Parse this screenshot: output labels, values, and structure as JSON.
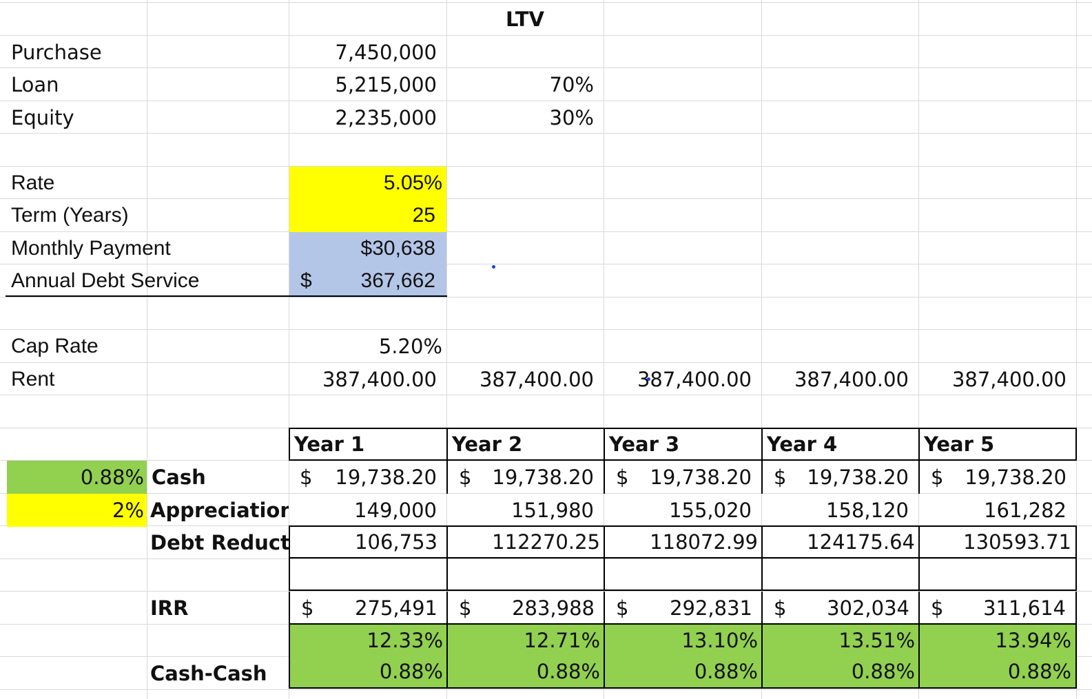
{
  "header": {
    "ltv": "LTV"
  },
  "financing": {
    "purchase": {
      "label": "Purchase",
      "value": "7,450,000"
    },
    "loan": {
      "label": "Loan",
      "value": "5,215,000",
      "pct": "70%"
    },
    "equity": {
      "label": "Equity",
      "value": "2,235,000",
      "pct": "30%"
    },
    "rate": {
      "label": "Rate",
      "value": "5.05%"
    },
    "term": {
      "label": "Term (Years)",
      "value": "25"
    },
    "monthly_payment": {
      "label": "Monthly Payment",
      "value": "$30,638"
    },
    "annual_debt_service": {
      "label": "Annual Debt Service",
      "currency": "$",
      "value": "367,662"
    }
  },
  "income": {
    "cap_rate": {
      "label": "Cap Rate",
      "value": "5.20%"
    },
    "rent": {
      "label": "Rent",
      "values": [
        "387,400.00",
        "387,400.00",
        "387,400.00",
        "387,400.00",
        "387,400.00"
      ]
    }
  },
  "returns": {
    "years": [
      "Year 1",
      "Year 2",
      "Year 3",
      "Year 4",
      "Year 5"
    ],
    "cash": {
      "rate": "0.88%",
      "label": "Cash",
      "currency": "$",
      "values": [
        "19,738.20",
        "19,738.20",
        "19,738.20",
        "19,738.20",
        "19,738.20"
      ]
    },
    "appreciation": {
      "rate": "2%",
      "label": "Appreciation",
      "values": [
        "149,000",
        "151,980",
        "155,020",
        "158,120",
        "161,282"
      ]
    },
    "debt_reduction": {
      "label": "Debt Reducti",
      "values": [
        "106,753",
        "112270.25",
        "118072.99",
        "124175.64",
        "130593.71"
      ]
    },
    "irr": {
      "label": "IRR",
      "currency": "$",
      "totals": [
        "275,491",
        "283,988",
        "292,831",
        "302,034",
        "311,614"
      ],
      "pct": [
        "12.33%",
        "12.71%",
        "13.10%",
        "13.51%",
        "13.94%"
      ]
    },
    "cash_cash": {
      "label": "Cash-Cash",
      "values": [
        "0.88%",
        "0.88%",
        "0.88%",
        "0.88%",
        "0.88%"
      ]
    }
  },
  "colors": {
    "input_yellow": "#ffff00",
    "calc_blue": "#b4c6e7",
    "highlight_green": "#92d050"
  }
}
